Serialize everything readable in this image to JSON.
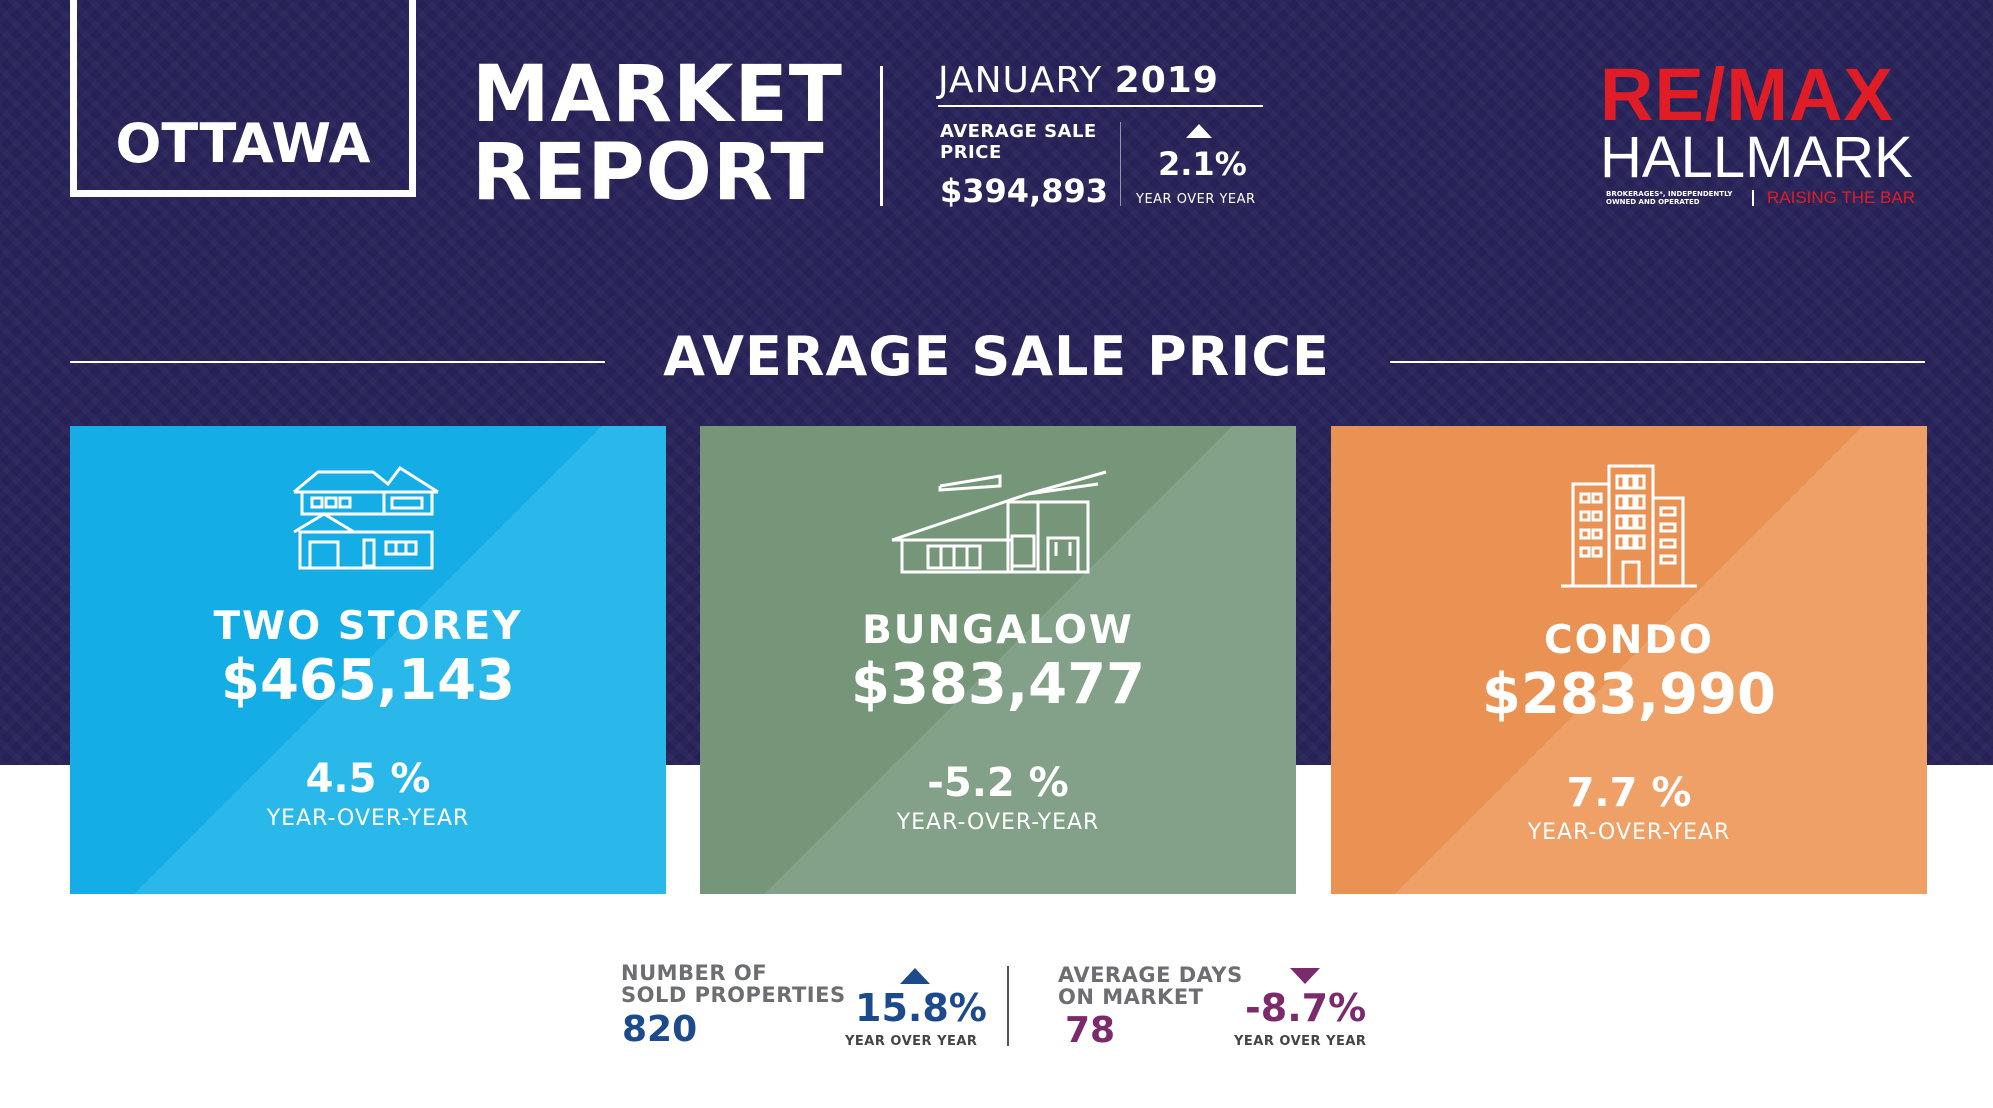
{
  "header": {
    "city": "OTTAWA",
    "title_line1": "MARKET",
    "title_line2": "REPORT",
    "month": "JANUARY",
    "year": "2019",
    "avg_label_line1": "AVERAGE SALE",
    "avg_label_line2": "PRICE",
    "avg_value": "$394,893",
    "avg_change": "2.1%",
    "avg_change_caption": "YEAR OVER YEAR"
  },
  "logo": {
    "line1": "RE/MAX",
    "line2": "HALLMARK",
    "sub_line1": "BROKERAGES*, INDEPENDENTLY",
    "sub_line2": "OWNED AND OPERATED",
    "tagline": "RAISING THE BAR"
  },
  "section": {
    "title": "AVERAGE SALE PRICE"
  },
  "cards": [
    {
      "label": "TWO STOREY",
      "price": "$465,143",
      "change": "4.5 %",
      "caption": "YEAR-OVER-YEAR",
      "icon": "house-icon",
      "color": "#1bb3e8"
    },
    {
      "label": "BUNGALOW",
      "price": "$383,477",
      "change": "-5.2 %",
      "caption": "YEAR-OVER-YEAR",
      "icon": "bungalow-icon",
      "color": "#7a9a80"
    },
    {
      "label": "CONDO",
      "price": "$283,990",
      "change": "7.7 %",
      "caption": "YEAR-OVER-YEAR",
      "icon": "building-icon",
      "color": "#ec9458"
    }
  ],
  "stats": {
    "sold": {
      "label_line1": "NUMBER OF",
      "label_line2": "SOLD PROPERTIES",
      "value": "820",
      "change": "15.8%",
      "caption": "YEAR OVER YEAR",
      "direction": "up",
      "color": "#1d4a8c"
    },
    "days": {
      "label_line1": "AVERAGE DAYS",
      "label_line2": "ON MARKET",
      "value": "78",
      "change": "-8.7%",
      "caption": "YEAR OVER YEAR",
      "direction": "down",
      "color": "#7b2a6b"
    }
  },
  "colors": {
    "navy": "#262257",
    "remax_red": "#e01c26"
  }
}
